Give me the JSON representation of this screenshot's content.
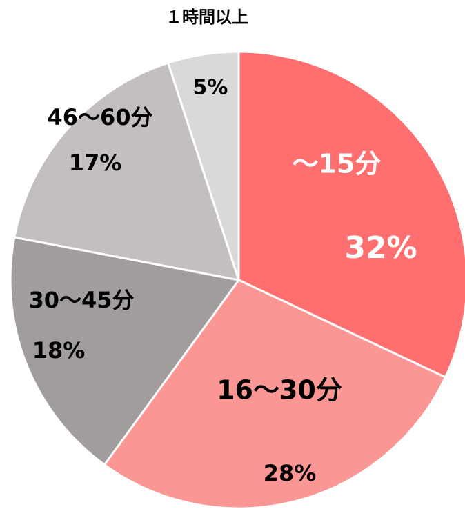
{
  "chart_data": {
    "type": "pie",
    "categories": [
      "～15分",
      "16～30分",
      "30～45分",
      "46～60分",
      "１時間以上"
    ],
    "values": [
      32,
      28,
      18,
      17,
      5
    ],
    "value_labels": [
      "32%",
      "28%",
      "18%",
      "17%",
      "5%"
    ],
    "colors": [
      "#ff6f6f",
      "#fa9794",
      "#a29d9d",
      "#c3bfbf",
      "#d9d9d9"
    ]
  }
}
